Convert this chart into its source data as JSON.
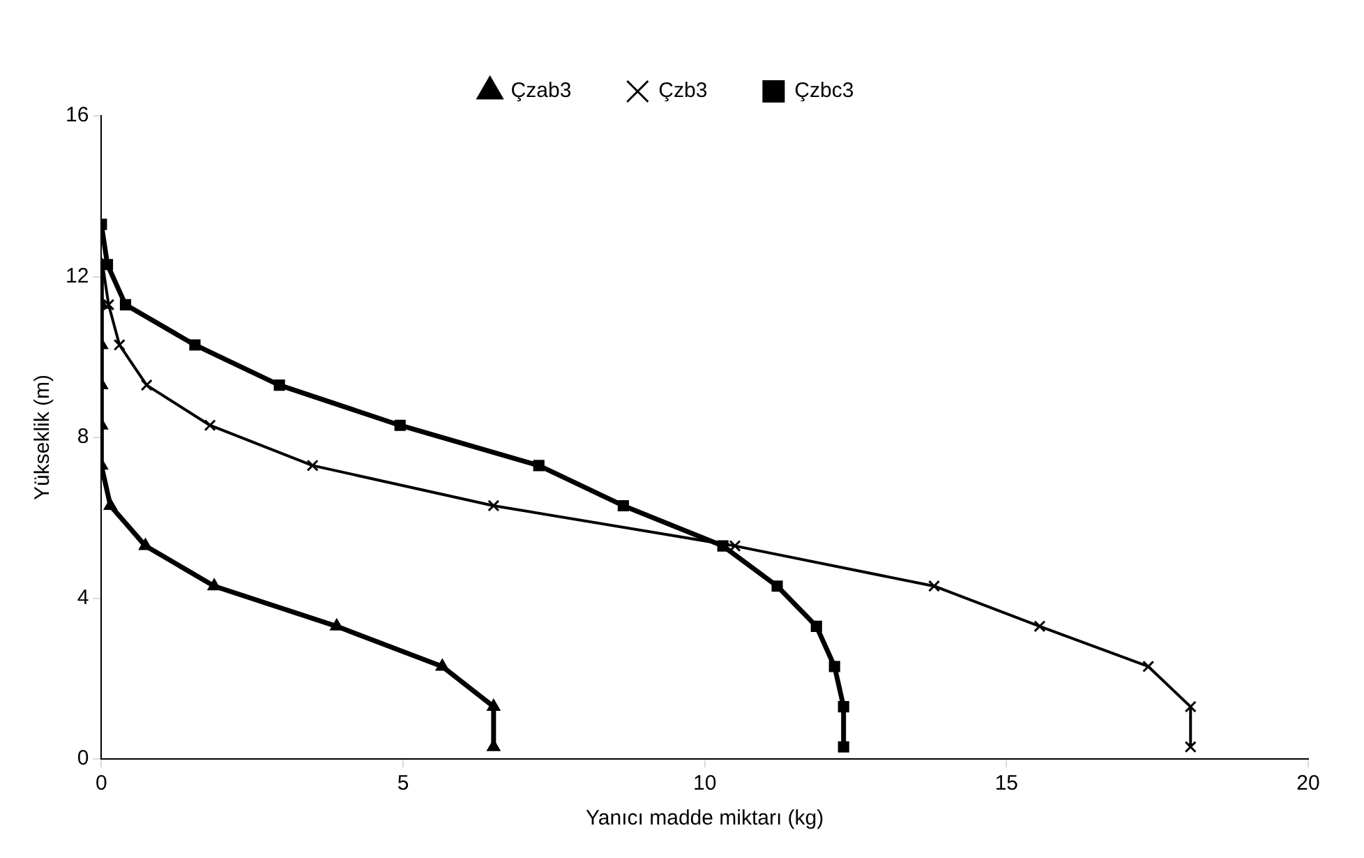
{
  "chart_data": {
    "type": "line",
    "xlabel": "Yanıcı madde miktarı (kg)",
    "ylabel": "Yükseklik (m)",
    "xlim": [
      0,
      20
    ],
    "xticks": [
      0,
      5,
      10,
      15,
      20
    ],
    "ylim": [
      0,
      16
    ],
    "yticks": [
      0,
      4,
      8,
      12,
      16
    ],
    "grid": false,
    "legend": "top",
    "line_style": "solid",
    "series": [
      {
        "name": "Çzab3",
        "color": "#000000",
        "marker": "triangle",
        "x": [
          6.5,
          6.5,
          5.65,
          3.9,
          1.87,
          0.73,
          0.15,
          0,
          0,
          0,
          0,
          0,
          0
        ],
        "values": [
          0.3,
          1.3,
          2.3,
          3.3,
          4.3,
          5.3,
          6.3,
          7.3,
          8.3,
          9.3,
          10.3,
          11.3,
          12.3
        ]
      },
      {
        "name": "Çzb3",
        "color": "#000000",
        "marker": "cross",
        "x": [
          18.05,
          18.05,
          17.35,
          15.55,
          13.8,
          10.5,
          6.5,
          3.5,
          1.8,
          0.75,
          0.3,
          0.12,
          0.02
        ],
        "values": [
          0.3,
          1.3,
          2.3,
          3.3,
          4.3,
          5.3,
          6.3,
          7.3,
          8.3,
          9.3,
          10.3,
          11.3,
          12.3
        ]
      },
      {
        "name": "Çzbc3",
        "color": "#000000",
        "marker": "square",
        "x": [
          12.3,
          12.3,
          12.15,
          11.85,
          11.2,
          10.3,
          8.65,
          7.25,
          4.95,
          2.95,
          1.55,
          0.4,
          0.1,
          0
        ],
        "values": [
          0.3,
          1.3,
          2.3,
          3.3,
          4.3,
          5.3,
          6.3,
          7.3,
          8.3,
          9.3,
          10.3,
          11.3,
          12.3,
          13.3
        ]
      }
    ]
  }
}
